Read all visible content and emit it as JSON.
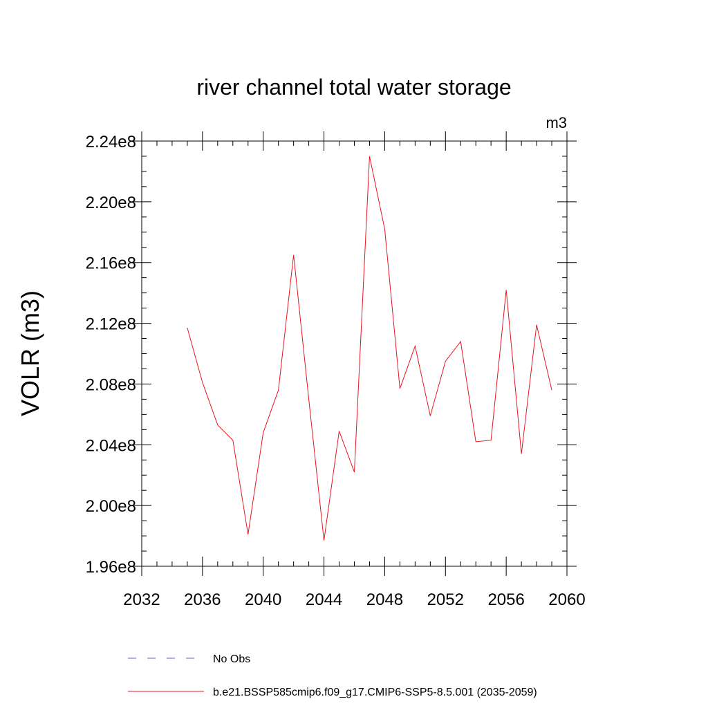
{
  "chart_data": {
    "type": "line",
    "title": "river channel total water storage",
    "units": "m3",
    "xlabel": "",
    "ylabel": "VOLR  (m3)",
    "xlim": [
      2032,
      2060
    ],
    "ylim": [
      196000000.0,
      224000000.0
    ],
    "x_ticks": [
      2032,
      2036,
      2040,
      2044,
      2048,
      2052,
      2056,
      2060
    ],
    "x_tick_labels": [
      "2032",
      "2036",
      "2040",
      "2044",
      "2048",
      "2052",
      "2056",
      "2060"
    ],
    "y_ticks": [
      196000000.0,
      200000000.0,
      204000000.0,
      208000000.0,
      212000000.0,
      216000000.0,
      220000000.0,
      224000000.0
    ],
    "y_tick_labels": [
      "1.96e8",
      "2.00e8",
      "2.04e8",
      "2.08e8",
      "2.12e8",
      "2.16e8",
      "2.20e8",
      "2.24e8"
    ],
    "x_minor_step": 1,
    "y_minor_step": 1000000.0,
    "series": [
      {
        "name": "b.e21.BSSP585cmip6.f09_g17.CMIP6-SSP5-8.5.001 (2035-2059)",
        "color": "#e8141e",
        "style": "solid",
        "x": [
          2035,
          2036,
          2037,
          2038,
          2039,
          2040,
          2041,
          2042,
          2043,
          2044,
          2045,
          2046,
          2047,
          2048,
          2049,
          2050,
          2051,
          2052,
          2053,
          2054,
          2055,
          2056,
          2057,
          2058,
          2059
        ],
        "values": [
          211700000.0,
          208100000.0,
          205300000.0,
          204300000.0,
          198100000.0,
          204800000.0,
          207600000.0,
          216500000.0,
          207000000.0,
          197700000.0,
          204900000.0,
          202200000.0,
          223000000.0,
          218200000.0,
          207700000.0,
          210500000.0,
          205900000.0,
          209500000.0,
          210800000.0,
          204200000.0,
          204300000.0,
          214200000.0,
          203400000.0,
          211900000.0,
          207600000.0
        ]
      }
    ],
    "legend": [
      {
        "label": "No Obs",
        "color": "#6a5acd",
        "style": "dashed"
      },
      {
        "label": "b.e21.BSSP585cmip6.f09_g17.CMIP6-SSP5-8.5.001 (2035-2059)",
        "color": "#e8141e",
        "style": "solid"
      }
    ]
  }
}
